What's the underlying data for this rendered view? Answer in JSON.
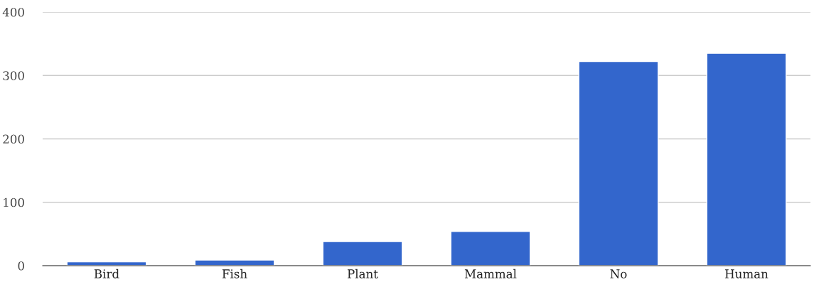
{
  "chart_data": {
    "type": "bar",
    "categories": [
      "Bird",
      "Fish",
      "Plant",
      "Mammal",
      "No",
      "Human"
    ],
    "values": [
      6,
      9,
      38,
      54,
      322,
      335
    ],
    "color": "#3366cc",
    "ylim": [
      0,
      400
    ],
    "yticks": [
      0,
      100,
      200,
      300,
      400
    ],
    "grid": "y",
    "legend": false
  }
}
